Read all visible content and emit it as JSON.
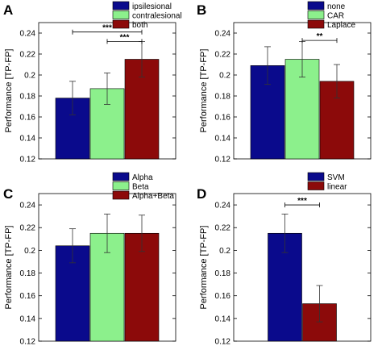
{
  "figure": {
    "panels": [
      "A",
      "B",
      "C",
      "D"
    ]
  },
  "colors": {
    "navy": "#0a0a8c",
    "green": "#8cf08c",
    "darkred": "#8c0a0a",
    "errorbar": "#333333",
    "axis": "#000000"
  },
  "chart_data": [
    {
      "panel": "A",
      "type": "bar",
      "ylabel": "Performance [TP-FP]",
      "ylim": [
        0.12,
        0.25
      ],
      "yticks": [
        "0.12",
        "0.14",
        "0.16",
        "0.18",
        "0.2",
        "0.22",
        "0.24"
      ],
      "categories": [
        "ipsilesional",
        "contralesional",
        "both"
      ],
      "legend_position": "top-right",
      "series": [
        {
          "name": "ipsilesional",
          "color": "navy",
          "value": 0.178,
          "error": 0.016
        },
        {
          "name": "contralesional",
          "color": "green",
          "value": 0.187,
          "error": 0.015
        },
        {
          "name": "both",
          "color": "darkred",
          "value": 0.215,
          "error": 0.017
        }
      ],
      "significance": [
        {
          "from": 0,
          "to": 2,
          "y": 0.241,
          "label": "***"
        },
        {
          "from": 1,
          "to": 2,
          "y": 0.232,
          "label": "***"
        }
      ]
    },
    {
      "panel": "B",
      "type": "bar",
      "ylabel": "Performance [TP-FP]",
      "ylim": [
        0.12,
        0.25
      ],
      "yticks": [
        "0.12",
        "0.14",
        "0.16",
        "0.18",
        "0.2",
        "0.22",
        "0.24"
      ],
      "categories": [
        "none",
        "CAR",
        "Laplace"
      ],
      "legend_position": "top-right",
      "series": [
        {
          "name": "none",
          "color": "navy",
          "value": 0.209,
          "error": 0.018
        },
        {
          "name": "CAR",
          "color": "green",
          "value": 0.215,
          "error": 0.017
        },
        {
          "name": "Laplace",
          "color": "darkred",
          "value": 0.194,
          "error": 0.016
        }
      ],
      "significance": [
        {
          "from": 1,
          "to": 2,
          "y": 0.233,
          "label": "**"
        }
      ]
    },
    {
      "panel": "C",
      "type": "bar",
      "ylabel": "Performance [TP-FP]",
      "ylim": [
        0.12,
        0.25
      ],
      "yticks": [
        "0.12",
        "0.14",
        "0.16",
        "0.18",
        "0.2",
        "0.22",
        "0.24"
      ],
      "categories": [
        "Alpha",
        "Beta",
        "Alpha+Beta"
      ],
      "legend_position": "top-right",
      "series": [
        {
          "name": "Alpha",
          "color": "navy",
          "value": 0.204,
          "error": 0.015
        },
        {
          "name": "Beta",
          "color": "green",
          "value": 0.215,
          "error": 0.017
        },
        {
          "name": "Alpha+Beta",
          "color": "darkred",
          "value": 0.215,
          "error": 0.016
        }
      ],
      "significance": []
    },
    {
      "panel": "D",
      "type": "bar",
      "ylabel": "Performance [TP-FP]",
      "ylim": [
        0.12,
        0.25
      ],
      "yticks": [
        "0.12",
        "0.14",
        "0.16",
        "0.18",
        "0.2",
        "0.22",
        "0.24"
      ],
      "categories": [
        "SVM",
        "linear"
      ],
      "legend_position": "top-right",
      "series": [
        {
          "name": "SVM",
          "color": "navy",
          "value": 0.215,
          "error": 0.017
        },
        {
          "name": "linear",
          "color": "darkred",
          "value": 0.153,
          "error": 0.016
        }
      ],
      "significance": [
        {
          "from": 0,
          "to": 1,
          "y": 0.24,
          "label": "***"
        }
      ]
    }
  ]
}
